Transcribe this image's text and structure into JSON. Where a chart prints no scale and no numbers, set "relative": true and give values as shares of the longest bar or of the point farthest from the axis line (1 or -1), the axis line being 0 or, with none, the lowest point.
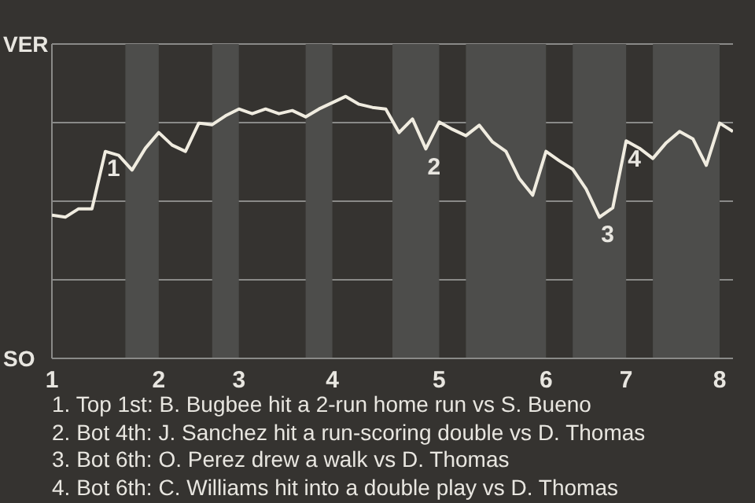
{
  "chart_data": {
    "type": "line",
    "relative": true,
    "categories": [
      "1",
      null,
      null,
      null,
      null,
      null,
      null,
      null,
      "2",
      null,
      null,
      null,
      null,
      null,
      "3",
      null,
      null,
      null,
      null,
      null,
      null,
      "4",
      null,
      null,
      null,
      null,
      null,
      null,
      null,
      "5",
      null,
      null,
      null,
      null,
      null,
      null,
      null,
      "6",
      null,
      null,
      null,
      null,
      null,
      "7",
      null,
      null,
      null,
      null,
      null,
      null,
      "8",
      null
    ],
    "series": [
      {
        "color": "#f0ece0",
        "values": [
          0.547,
          0.539,
          0.571,
          0.571,
          0.79,
          0.775,
          0.719,
          0.802,
          0.862,
          0.814,
          0.79,
          0.898,
          0.892,
          0.926,
          0.952,
          0.934,
          0.952,
          0.934,
          0.946,
          0.922,
          0.952,
          0.976,
          1,
          0.97,
          0.958,
          0.952,
          0.862,
          0.914,
          0.8,
          0.902,
          0.874,
          0.85,
          0.89,
          0.826,
          0.79,
          0.686,
          0.623,
          0.79,
          0.754,
          0.722,
          0.647,
          0.539,
          0.575,
          0.83,
          0.802,
          0.763,
          0.823,
          0.866,
          0.838,
          0.737,
          0.898,
          0.866
        ]
      }
    ],
    "grid": "y",
    "annotations": [
      "VER",
      "SO",
      {
        "text": "1",
        "y": 0.79
      },
      {
        "text": "2",
        "y": 0.8
      },
      {
        "text": "3",
        "y": 0.539
      },
      {
        "text": "4",
        "y": 0.83
      },
      "1. Top 1st: B. Bugbee hit a 2-run home run vs S. Bueno",
      "2. Bot 4th: J. Sanchez hit a run-scoring double vs D. Thomas",
      "3. Bot 6th: O. Perez drew a walk vs D. Thomas",
      "4. Bot 6th: C. Williams hit into a double play vs D. Thomas"
    ]
  }
}
